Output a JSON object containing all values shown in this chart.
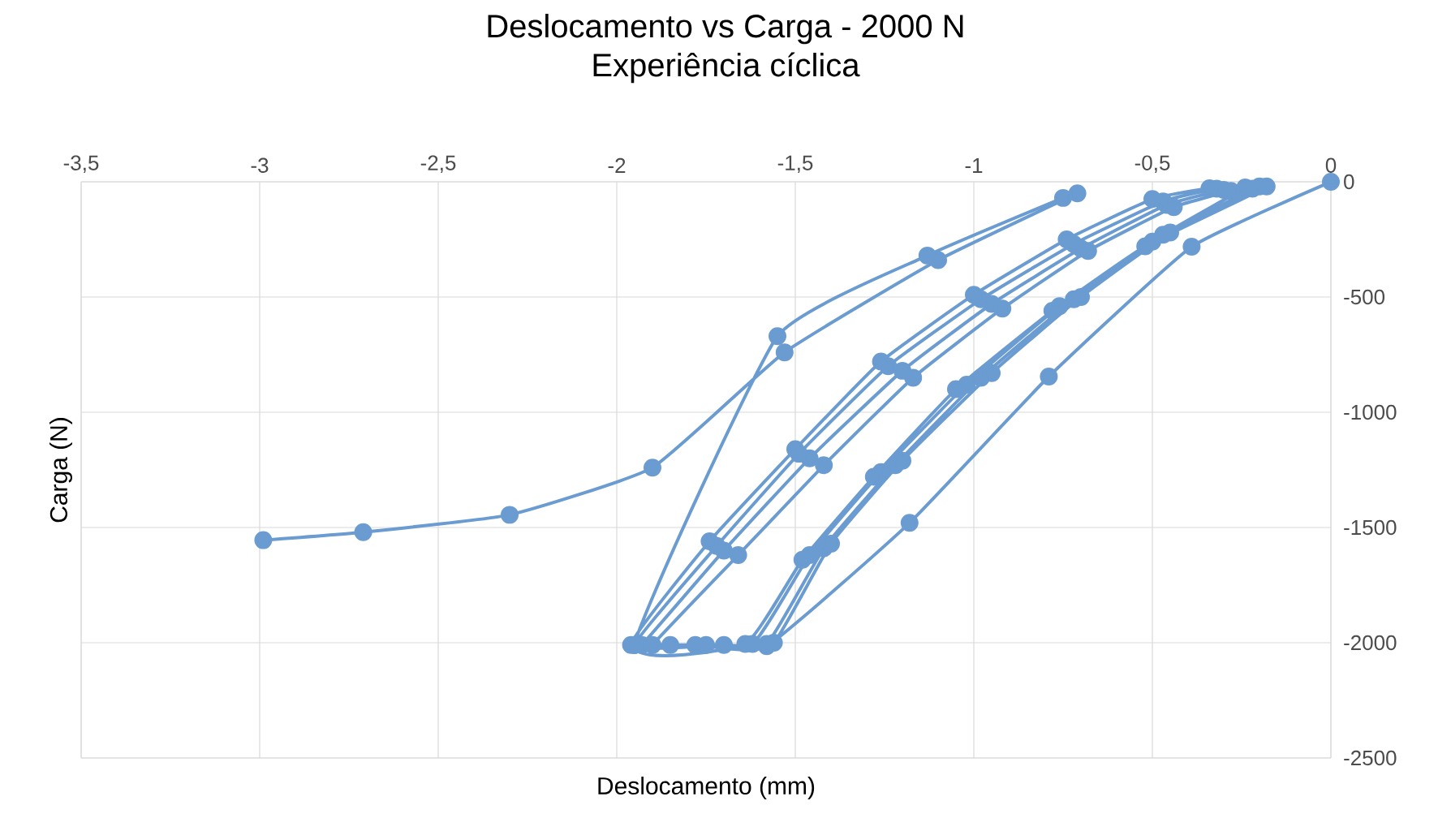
{
  "chart_data": {
    "type": "line",
    "title": "Deslocamento vs Carga - 2000 N",
    "subtitle": "Experiência cíclica",
    "xlabel": "Deslocamento (mm)",
    "ylabel": "Carga (N)",
    "xlim": [
      -3.5,
      0
    ],
    "ylim": [
      -2500,
      0
    ],
    "xticks": [
      {
        "value": -3.5,
        "label": "-3,5"
      },
      -3,
      {
        "value": -2.5,
        "label": "-2,5"
      },
      -2,
      {
        "value": -1.5,
        "label": "-1,5"
      },
      -1,
      {
        "value": -0.5,
        "label": "-0,5"
      },
      0
    ],
    "yticks": [
      -2500,
      -2000,
      -1500,
      -1000,
      -500,
      0
    ],
    "grid": true,
    "marker": "circle",
    "color": "#6a9bd1",
    "x": [
      0,
      -0.39,
      -0.79,
      -1.18,
      -1.58,
      -1.78,
      -1.95,
      -1.93,
      -1.7,
      -1.46,
      -1.2,
      -0.95,
      -0.7,
      -0.46,
      -0.3,
      -0.24,
      -0.47,
      -0.72,
      -0.98,
      -1.22,
      -1.42,
      -1.58,
      -1.75,
      -1.95,
      -1.72,
      -1.49,
      -1.24,
      -0.98,
      -0.72,
      -0.47,
      -0.32,
      -0.2,
      -0.5,
      -0.76,
      -1.02,
      -1.26,
      -1.46,
      -1.62,
      -1.85,
      -1.9,
      -1.66,
      -1.42,
      -1.17,
      -0.92,
      -0.68,
      -0.44,
      -0.28,
      -0.22,
      -0.45,
      -0.7,
      -0.95,
      -1.2,
      -1.4,
      -1.56,
      -1.7,
      -1.96,
      -1.74,
      -1.5,
      -1.26,
      -1.0,
      -0.74,
      -0.5,
      -0.34,
      -0.18,
      -0.52,
      -0.78,
      -1.05,
      -1.28,
      -1.48,
      -1.64,
      -1.95,
      -1.55,
      -1.13,
      -0.75,
      -0.71,
      -1.1,
      -1.53,
      -1.9,
      -2.3,
      -2.71,
      -2.99
    ],
    "values": [
      0,
      -282,
      -845,
      -1480,
      -2015,
      -2010,
      -2010,
      -2010,
      -1600,
      -1200,
      -820,
      -530,
      -290,
      -100,
      -35,
      -25,
      -230,
      -510,
      -850,
      -1230,
      -1590,
      -2005,
      -2010,
      -2010,
      -1580,
      -1180,
      -800,
      -510,
      -270,
      -85,
      -30,
      -20,
      -260,
      -540,
      -880,
      -1260,
      -1620,
      -2005,
      -2010,
      -2010,
      -1620,
      -1230,
      -850,
      -550,
      -300,
      -110,
      -40,
      -30,
      -220,
      -500,
      -830,
      -1210,
      -1570,
      -2000,
      -2010,
      -2010,
      -1560,
      -1160,
      -780,
      -490,
      -250,
      -75,
      -28,
      -20,
      -280,
      -560,
      -900,
      -1280,
      -1640,
      -2005,
      -2010,
      -670,
      -320,
      -70,
      -50,
      -340,
      -740,
      -1240,
      -1445,
      -1520,
      -1555
    ]
  }
}
